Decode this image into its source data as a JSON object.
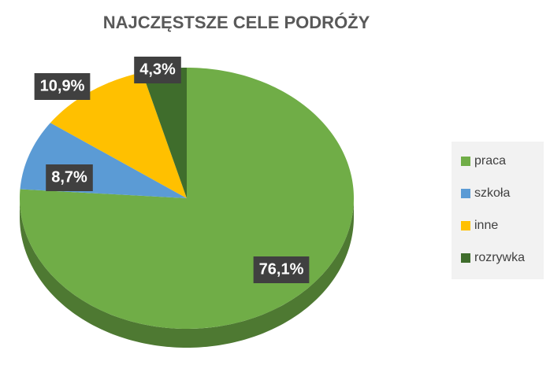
{
  "chart_data": {
    "type": "pie",
    "title": "NAJCZĘSTSZE CELE PODRÓŻY",
    "categories": [
      "praca",
      "szkoła",
      "inne",
      "rozrywka"
    ],
    "values": [
      76.1,
      8.7,
      10.9,
      4.3
    ],
    "value_labels": [
      "76,1%",
      "8,7%",
      "10,9%",
      "4,3%"
    ],
    "colors": [
      "#70ad47",
      "#5b9bd5",
      "#ffc000",
      "#3f6d2c"
    ],
    "legend": "right"
  }
}
